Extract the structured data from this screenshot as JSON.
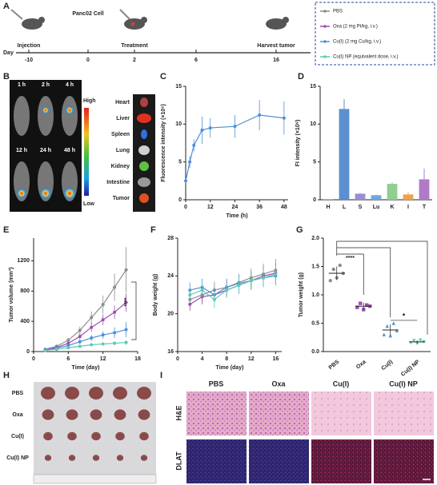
{
  "panels": [
    "A",
    "B",
    "H",
    "I"
  ],
  "timeline": {
    "day_label": "Day",
    "days": [
      -10,
      0,
      2,
      6,
      16
    ],
    "events": [
      "Injection",
      "Panc02 Cell",
      "Treatment",
      "Harvest tumor"
    ]
  },
  "legend": [
    {
      "name": "PBS",
      "color": "#8c8c8c"
    },
    {
      "name": "Oxa (2 mg Pt/kg, i.v.)",
      "color": "#9b4fb0"
    },
    {
      "name": "Cu(I) (2 mg Cu/kg, i.v.)",
      "color": "#4f8fd6"
    },
    {
      "name": "Cu(I) NP (equivalent dose, i.v.)",
      "color": "#5fc9b0"
    }
  ],
  "imaging": {
    "times": [
      "1 h",
      "2 h",
      "4 h",
      "12 h",
      "24 h",
      "48 h"
    ],
    "high": "High",
    "low": "Low",
    "organs": [
      "Heart",
      "Liver",
      "Spleen",
      "Lung",
      "Kidney",
      "Intestine",
      "Tumor"
    ]
  },
  "tumor_photo": {
    "rows": [
      "PBS",
      "Oxa",
      "Cu(I)",
      "Cu(I) NP"
    ]
  },
  "histology": {
    "columns": [
      "PBS",
      "Oxa",
      "Cu(I)",
      "Cu(I) NP"
    ],
    "rows": [
      "H&E",
      "DLAT"
    ]
  },
  "chart_data": [
    {
      "type": "line",
      "panel": "C",
      "ylabel": "Fluorescence intensity (×10⁶)",
      "xlabel": "Time (h)",
      "x": [
        0,
        2,
        4,
        8,
        12,
        24,
        36,
        48
      ],
      "xlim": [
        0,
        50
      ],
      "xticks": [
        0,
        12,
        24,
        36,
        48
      ],
      "ylim": [
        0,
        15
      ],
      "yticks": [
        0,
        5,
        10,
        15
      ],
      "series": [
        {
          "color": "#4f8fd6",
          "values": [
            2.5,
            5,
            7.2,
            9.2,
            9.5,
            9.7,
            11.2,
            10.8
          ],
          "errors": [
            0.3,
            0.8,
            0.8,
            1.8,
            1.3,
            1.5,
            2.0,
            2.2
          ]
        }
      ]
    },
    {
      "type": "bar",
      "panel": "D",
      "ylabel": "FI intensity (×10⁸)",
      "categories": [
        "H",
        "L",
        "S",
        "Lu",
        "K",
        "I",
        "T"
      ],
      "values": [
        0.1,
        12,
        0.8,
        0.6,
        2.1,
        0.7,
        2.7
      ],
      "errors": [
        0.05,
        1.3,
        0.1,
        0.1,
        0.2,
        0.3,
        1.4
      ],
      "colors": [
        "#e89aa8",
        "#5b8fd0",
        "#9a8fd0",
        "#6fa8dc",
        "#8fce8f",
        "#f0a24a",
        "#b07ac8"
      ],
      "ylim": [
        0,
        15
      ],
      "yticks": [
        0,
        5,
        10,
        15
      ]
    },
    {
      "type": "line",
      "panel": "E",
      "ylabel": "Tumor volume (mm³)",
      "xlabel": "Time (day)",
      "x": [
        2,
        4,
        6,
        8,
        10,
        12,
        14,
        16
      ],
      "xlim": [
        0,
        18
      ],
      "xticks": [
        0,
        6,
        12,
        18
      ],
      "ylim": [
        0,
        1500
      ],
      "yticks": [
        0,
        400,
        800,
        1200
      ],
      "annotations": [
        "****"
      ],
      "series": [
        {
          "color": "#8c8c8c",
          "values": [
            30,
            70,
            150,
            280,
            450,
            620,
            850,
            1080
          ],
          "errors": [
            5,
            15,
            30,
            50,
            80,
            120,
            180,
            300
          ]
        },
        {
          "color": "#9b4fb0",
          "values": [
            25,
            55,
            110,
            200,
            320,
            420,
            520,
            650
          ],
          "errors": [
            5,
            10,
            20,
            40,
            60,
            70,
            90,
            120
          ]
        },
        {
          "color": "#4f8fd6",
          "values": [
            20,
            45,
            80,
            130,
            180,
            220,
            250,
            290
          ],
          "errors": [
            5,
            10,
            15,
            30,
            40,
            50,
            70,
            100
          ]
        },
        {
          "color": "#5fc9b0",
          "values": [
            15,
            30,
            50,
            70,
            90,
            100,
            110,
            120
          ],
          "errors": [
            3,
            5,
            10,
            15,
            20,
            20,
            25,
            30
          ]
        }
      ]
    },
    {
      "type": "line",
      "panel": "F",
      "ylabel": "Body weight (g)",
      "xlabel": "Time (day)",
      "x": [
        2,
        4,
        6,
        8,
        10,
        12,
        14,
        16
      ],
      "xlim": [
        0,
        17
      ],
      "xticks": [
        0,
        4,
        8,
        12,
        16
      ],
      "ylim": [
        16,
        28
      ],
      "yticks": [
        16,
        20,
        24,
        28
      ],
      "series": [
        {
          "color": "#8c8c8c",
          "values": [
            21.5,
            22,
            22.5,
            22.8,
            23.3,
            23.8,
            24.2,
            24.6
          ],
          "errors": [
            0.8,
            0.8,
            0.9,
            0.8,
            0.9,
            1.0,
            1.1,
            1.2
          ]
        },
        {
          "color": "#9b4fb0",
          "values": [
            21,
            21.8,
            22,
            22.5,
            23,
            23.5,
            24,
            24.3
          ],
          "errors": [
            0.7,
            0.8,
            0.8,
            0.8,
            0.9,
            0.9,
            1.0,
            1.0
          ]
        },
        {
          "color": "#4f8fd6",
          "values": [
            22.5,
            22.8,
            22,
            22.8,
            23.2,
            23.5,
            23.8,
            24
          ],
          "errors": [
            0.8,
            0.9,
            0.8,
            0.9,
            0.9,
            1.0,
            1.0,
            1.0
          ]
        },
        {
          "color": "#5fc9b0",
          "values": [
            22,
            22.5,
            21.5,
            22.5,
            23,
            23.5,
            23.8,
            24.2
          ],
          "errors": [
            0.8,
            0.8,
            0.9,
            0.8,
            0.9,
            0.9,
            1.0,
            1.0
          ]
        }
      ]
    },
    {
      "type": "dot",
      "panel": "G",
      "ylabel": "Tumor weight (g)",
      "categories": [
        "PBS",
        "Oxa",
        "Cu(I)",
        "Cu(I) NP"
      ],
      "values": [
        1.38,
        0.8,
        0.38,
        0.17
      ],
      "errors": [
        0.12,
        0.06,
        0.1,
        0.03
      ],
      "points": [
        [
          1.25,
          1.45,
          1.3,
          1.52,
          1.38
        ],
        [
          0.78,
          0.85,
          0.74,
          0.82,
          0.8
        ],
        [
          0.3,
          0.45,
          0.28,
          0.5,
          0.37
        ],
        [
          0.15,
          0.19,
          0.14,
          0.2,
          0.17
        ]
      ],
      "colors": [
        "#8c8c8c",
        "#9b4fb0",
        "#4f8fd6",
        "#5fc9b0"
      ],
      "markers": [
        "circle",
        "square",
        "triangle",
        "triangle-down"
      ],
      "ylim": [
        0,
        2
      ],
      "yticks": [
        {
          "value": 0,
          "label": "0.0"
        },
        0.5,
        {
          "value": 1,
          "label": "1.0"
        },
        1.5,
        {
          "value": 2,
          "label": "2.0"
        }
      ],
      "annotations": [
        "****",
        "*"
      ]
    }
  ]
}
